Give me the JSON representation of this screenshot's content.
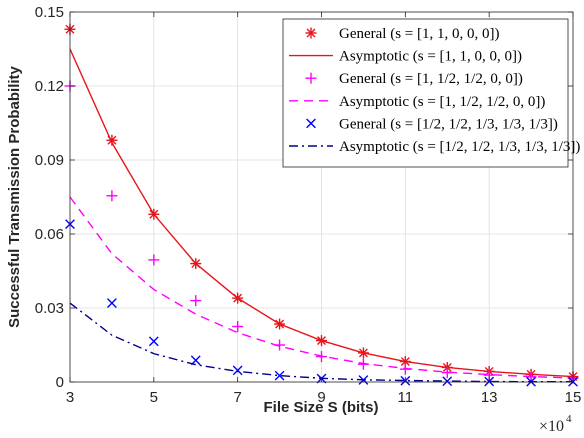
{
  "chart_data": {
    "type": "scatter",
    "xlabel": "File Size S (bits)",
    "ylabel": "Successful Transmission Probability",
    "x_multiplier_base": "×10",
    "x_multiplier_exp": "4",
    "xlim": [
      3,
      15
    ],
    "ylim": [
      0,
      0.15
    ],
    "xticks": [
      "3",
      "5",
      "7",
      "9",
      "11",
      "13",
      "15"
    ],
    "yticks": [
      "0",
      "0.03",
      "0.06",
      "0.09",
      "0.12",
      "0.15"
    ],
    "grid": true,
    "legend_position": "top-right",
    "series": [
      {
        "name": "General (s = [1, 1, 0, 0, 0])",
        "kind": "markers",
        "marker": "asterisk",
        "color": "#e8141b",
        "x": [
          3,
          4,
          5,
          6,
          7,
          8,
          9,
          10,
          11,
          12,
          13,
          14,
          15
        ],
        "y": [
          0.143,
          0.098,
          0.068,
          0.048,
          0.034,
          0.0235,
          0.0168,
          0.0118,
          0.0083,
          0.0059,
          0.0043,
          0.0031,
          0.0022
        ]
      },
      {
        "name": "Asymptotic (s = [1, 1, 0, 0, 0])",
        "kind": "line",
        "dash": "",
        "color": "#e8141b",
        "x": [
          3,
          4,
          5,
          6,
          7,
          8,
          9,
          10,
          11,
          12,
          13,
          14,
          15
        ],
        "y": [
          0.135,
          0.097,
          0.068,
          0.048,
          0.034,
          0.0235,
          0.0168,
          0.0118,
          0.0083,
          0.0059,
          0.0043,
          0.0031,
          0.0022
        ]
      },
      {
        "name": "General (s = [1, 1/2, 1/2, 0, 0])",
        "kind": "markers",
        "marker": "plus",
        "color": "#ff00ff",
        "x": [
          3,
          4,
          5,
          6,
          7,
          8,
          9,
          10,
          11,
          12,
          13,
          14,
          15
        ],
        "y": [
          0.12,
          0.0755,
          0.0495,
          0.033,
          0.0225,
          0.015,
          0.0103,
          0.0072,
          0.0052,
          0.0038,
          0.0028,
          0.0021,
          0.0016
        ]
      },
      {
        "name": "Asymptotic (s = [1, 1/2, 1/2, 0, 0])",
        "kind": "line",
        "dash": "9,6",
        "color": "#ff00ff",
        "x": [
          3,
          4,
          5,
          6,
          7,
          8,
          9,
          10,
          11,
          12,
          13,
          14,
          15
        ],
        "y": [
          0.075,
          0.052,
          0.0375,
          0.0275,
          0.02,
          0.0145,
          0.0105,
          0.0075,
          0.0055,
          0.004,
          0.003,
          0.0022,
          0.0016
        ]
      },
      {
        "name": "General (s = [1/2, 1/2, 1/3, 1/3, 1/3])",
        "kind": "markers",
        "marker": "cross",
        "color": "#0000ff",
        "x": [
          3,
          4,
          5,
          6,
          7,
          8,
          9,
          10,
          11,
          12,
          13,
          14,
          15
        ],
        "y": [
          0.064,
          0.032,
          0.0165,
          0.0088,
          0.0047,
          0.0026,
          0.0014,
          0.0008,
          0.0005,
          0.0003,
          0.0002,
          0.0001,
          0.0001
        ]
      },
      {
        "name": "Asymptotic (s = [1/2, 1/2, 1/3, 1/3, 1/3])",
        "kind": "line",
        "dash": "9,4,2,4",
        "color": "#00008b",
        "x": [
          3,
          4,
          5,
          6,
          7,
          8,
          9,
          10,
          11,
          12,
          13,
          14,
          15
        ],
        "y": [
          0.032,
          0.019,
          0.0115,
          0.007,
          0.0043,
          0.0026,
          0.0015,
          0.0009,
          0.0006,
          0.0004,
          0.0002,
          0.0001,
          0.0001
        ]
      }
    ]
  }
}
